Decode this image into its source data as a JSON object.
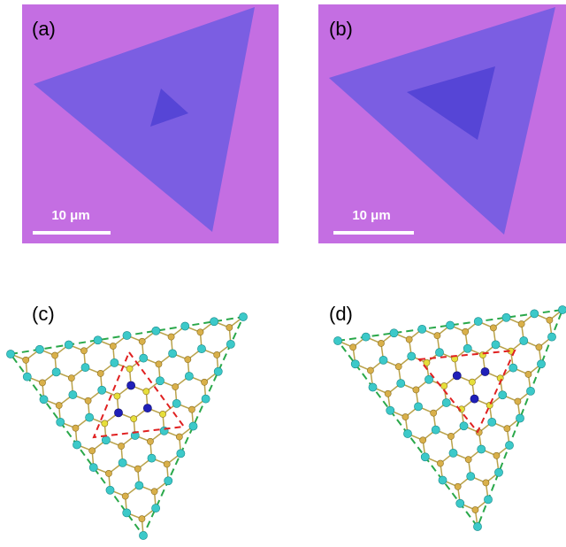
{
  "panels": [
    {
      "label": "(a)",
      "scale_bar": "10 μm"
    },
    {
      "label": "(b)",
      "scale_bar": "10 μm"
    },
    {
      "label": "(c)"
    },
    {
      "label": "(d)"
    }
  ]
}
